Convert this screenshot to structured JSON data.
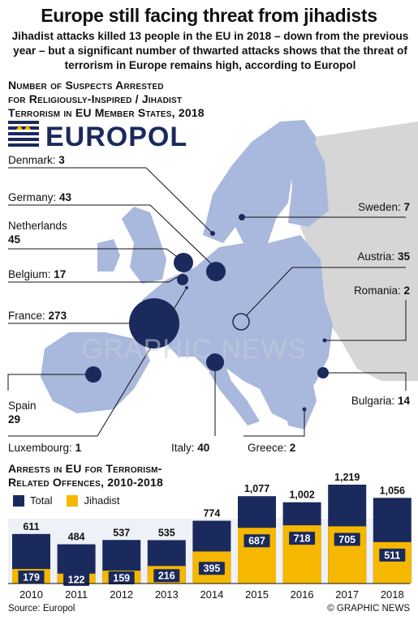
{
  "title": "Europe still facing threat from jihadists",
  "subtitle": "Jihadist attacks killed 13 people in the EU in 2018 – down from the previous year – but a significant number of thwarted attacks shows that the threat of terrorism in Europe remains high, according to Europol",
  "map_title": {
    "line1": "Number of Suspects Arrested",
    "line2": "for Religiously-Inspired / Jihadist",
    "line3": "Terrorism in EU Member States, 2018"
  },
  "logo_text": "EUROPOL",
  "watermark": "GRAPHIC NEWS",
  "countries": [
    {
      "name": "Denmark:",
      "value": "3"
    },
    {
      "name": "Germany:",
      "value": "43"
    },
    {
      "name": "Netherlands",
      "value": "45"
    },
    {
      "name": "Belgium:",
      "value": "17"
    },
    {
      "name": "France:",
      "value": "273"
    },
    {
      "name": "Spain",
      "value": "29"
    },
    {
      "name": "Luxembourg:",
      "value": "1"
    },
    {
      "name": "Italy:",
      "value": "40"
    },
    {
      "name": "Greece:",
      "value": "2"
    },
    {
      "name": "Sweden:",
      "value": "7"
    },
    {
      "name": "Austria:",
      "value": "35"
    },
    {
      "name": "Romania:",
      "value": "2"
    },
    {
      "name": "Bulgaria:",
      "value": "14"
    }
  ],
  "chart_title": {
    "line1": "Arrests in EU for Terrorism-",
    "line2": "Related Offences, 2010-2018"
  },
  "legend": {
    "total": "Total",
    "jihadist": "Jihadist"
  },
  "colors": {
    "total": "#1b2a5c",
    "jihadist": "#f5b700",
    "land_eu": "#a9b8dd",
    "land_other": "#d6d6d6",
    "sea": "#ffffff",
    "circle": "#1b2a5c"
  },
  "chart_data": {
    "type": "bar",
    "categories": [
      "2010",
      "2011",
      "2012",
      "2013",
      "2014",
      "2015",
      "2016",
      "2017",
      "2018"
    ],
    "series": [
      {
        "name": "Total",
        "values": [
          611,
          484,
          537,
          535,
          774,
          1077,
          1002,
          1219,
          1056
        ],
        "labels": [
          "611",
          "484",
          "537",
          "535",
          "774",
          "1,077",
          "1,002",
          "1,219",
          "1,056"
        ]
      },
      {
        "name": "Jihadist",
        "values": [
          179,
          122,
          159,
          216,
          395,
          687,
          718,
          705,
          511
        ],
        "labels": [
          "179",
          "122",
          "159",
          "216",
          "395",
          "687",
          "718",
          "705",
          "511"
        ]
      }
    ],
    "ylim": [
      0,
      1219
    ]
  },
  "source": "Source: Europol",
  "credit": "© GRAPHIC NEWS"
}
